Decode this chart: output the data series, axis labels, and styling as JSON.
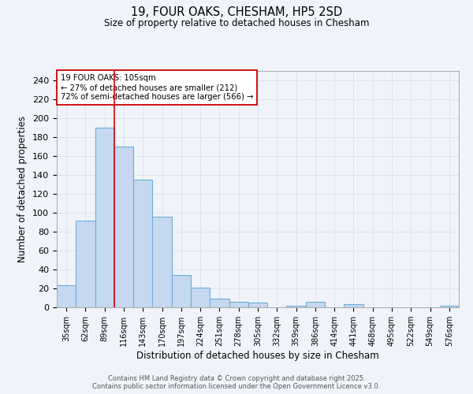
{
  "title": "19, FOUR OAKS, CHESHAM, HP5 2SD",
  "subtitle": "Size of property relative to detached houses in Chesham",
  "xlabel": "Distribution of detached houses by size in Chesham",
  "ylabel": "Number of detached properties",
  "categories": [
    "35sqm",
    "62sqm",
    "89sqm",
    "116sqm",
    "143sqm",
    "170sqm",
    "197sqm",
    "224sqm",
    "251sqm",
    "278sqm",
    "305sqm",
    "332sqm",
    "359sqm",
    "386sqm",
    "414sqm",
    "441sqm",
    "468sqm",
    "495sqm",
    "522sqm",
    "549sqm",
    "576sqm"
  ],
  "values": [
    23,
    92,
    190,
    170,
    135,
    96,
    34,
    21,
    9,
    6,
    5,
    0,
    2,
    6,
    0,
    3,
    0,
    0,
    0,
    0,
    2
  ],
  "bar_color": "#c5d8f0",
  "bar_edge_color": "#6baed6",
  "grid_color": "#d8e4f0",
  "background_color": "#f0f4fa",
  "vline_x": 2.5,
  "vline_color": "#dd0000",
  "annotation_title": "19 FOUR OAKS: 105sqm",
  "annotation_line1": "← 27% of detached houses are smaller (212)",
  "annotation_line2": "72% of semi-detached houses are larger (566) →",
  "annotation_box_color": "#ffffff",
  "annotation_box_edge": "#cc0000",
  "ylim": [
    0,
    250
  ],
  "yticks": [
    0,
    20,
    40,
    60,
    80,
    100,
    120,
    140,
    160,
    180,
    200,
    220,
    240
  ],
  "footer_line1": "Contains HM Land Registry data © Crown copyright and database right 2025.",
  "footer_line2": "Contains public sector information licensed under the Open Government Licence v3.0."
}
